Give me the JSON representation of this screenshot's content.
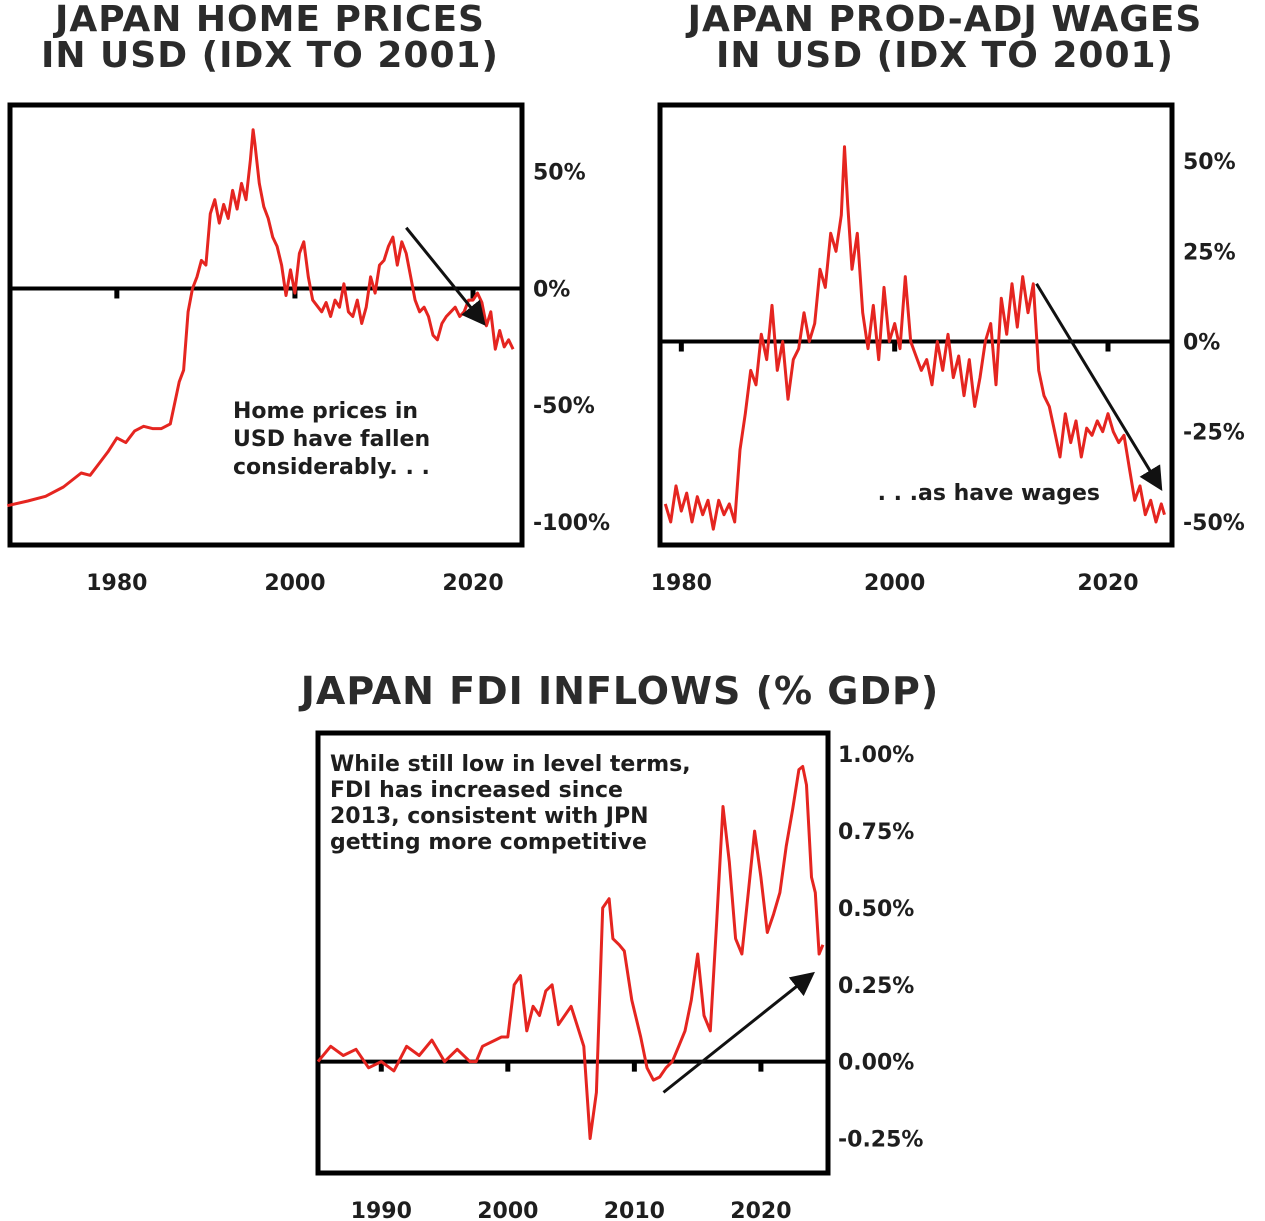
{
  "colors": {
    "line": "#e52520",
    "axis": "#000000",
    "arrow": "#111111"
  },
  "chart_data": [
    {
      "type": "line",
      "title_lines": [
        "JAPAN HOME PRICES",
        "IN USD (IDX TO 2001)"
      ],
      "ylim": [
        -100,
        70
      ],
      "y_ticks": [
        50,
        0,
        -50,
        -100
      ],
      "y_tick_labels": [
        "50%",
        "0%",
        "-50%",
        "-100%"
      ],
      "x_ticks": [
        1980,
        2000,
        2020
      ],
      "x_tick_labels": [
        "1980",
        "2000",
        "2020"
      ],
      "x_minor_ticks": [
        1980,
        2000,
        2020
      ],
      "xlim": [
        1968,
        2025.5
      ],
      "zero_line": 0,
      "annotation_lines": [
        "Home prices in",
        "USD have fallen",
        "considerably. . ."
      ],
      "arrow": {
        "from": [
          2012.5,
          26
        ],
        "to": [
          2021,
          -14
        ]
      },
      "series": [
        {
          "x": [
            1967.7,
            1970,
            1972,
            1974,
            1975,
            1976,
            1977,
            1978,
            1979,
            1980,
            1981,
            1982,
            1983,
            1984,
            1985,
            1986,
            1987,
            1987.5,
            1988,
            1988.5,
            1989,
            1989.5,
            1990,
            1990.5,
            1991,
            1991.5,
            1992,
            1992.5,
            1993,
            1993.5,
            1994,
            1994.5,
            1995,
            1995.3,
            1995.5,
            1996,
            1996.5,
            1997,
            1997.5,
            1998,
            1998.5,
            1999,
            1999.5,
            2000,
            2000.5,
            2001,
            2001.5,
            2002,
            2003,
            2003.5,
            2004,
            2004.5,
            2005,
            2005.5,
            2006,
            2006.5,
            2007,
            2007.5,
            2008,
            2008.5,
            2009,
            2009.5,
            2010,
            2010.5,
            2011,
            2011.5,
            2012,
            2012.5,
            2013,
            2013.5,
            2014,
            2014.5,
            2015,
            2015.5,
            2016,
            2016.5,
            2017,
            2017.5,
            2018,
            2018.5,
            2019,
            2019.5,
            2020,
            2020.5,
            2021,
            2021.5,
            2022,
            2022.5,
            2023,
            2023.5,
            2024,
            2024.5
          ],
          "y": [
            -93,
            -91,
            -89,
            -85,
            -82,
            -79,
            -80,
            -75,
            -70,
            -64,
            -66,
            -61,
            -59,
            -60,
            -60,
            -58,
            -40,
            -35,
            -10,
            0,
            5,
            12,
            10,
            32,
            38,
            28,
            36,
            30,
            42,
            34,
            45,
            38,
            55,
            68,
            62,
            45,
            35,
            30,
            22,
            18,
            10,
            -3,
            8,
            -2,
            15,
            20,
            5,
            -5,
            -10,
            -6,
            -12,
            -5,
            -8,
            2,
            -10,
            -12,
            -5,
            -15,
            -8,
            5,
            -2,
            10,
            12,
            18,
            22,
            10,
            20,
            15,
            5,
            -5,
            -10,
            -8,
            -12,
            -20,
            -22,
            -15,
            -12,
            -10,
            -8,
            -12,
            -10,
            -5,
            -5,
            -2,
            -6,
            -16,
            -10,
            -26,
            -18,
            -25,
            -22,
            -26
          ]
        }
      ]
    },
    {
      "type": "line",
      "title_lines": [
        "JAPAN PROD-ADJ WAGES",
        "IN USD (IDX TO 2001)"
      ],
      "ylim": [
        -55,
        60
      ],
      "y_ticks": [
        50,
        25,
        0,
        -25,
        -50
      ],
      "y_tick_labels": [
        "50%",
        "25%",
        "0%",
        "-25%",
        "-50%"
      ],
      "x_ticks": [
        1980,
        2000,
        2020
      ],
      "x_tick_labels": [
        "1980",
        "2000",
        "2020"
      ],
      "x_minor_ticks": [
        1980,
        2000,
        2020
      ],
      "xlim": [
        1978,
        2026
      ],
      "zero_line": 0,
      "annotation_lines": [
        ". . .as have wages"
      ],
      "arrow": {
        "from": [
          2013.3,
          16
        ],
        "to": [
          2024.8,
          -40
        ]
      },
      "series": [
        {
          "x": [
            1978.5,
            1979,
            1979.5,
            1980,
            1980.5,
            1981,
            1981.5,
            1982,
            1982.5,
            1983,
            1983.5,
            1984,
            1984.5,
            1985,
            1985.5,
            1986,
            1986.5,
            1987,
            1987.5,
            1988,
            1988.5,
            1989,
            1989.5,
            1990,
            1990.5,
            1991,
            1991.5,
            1992,
            1992.5,
            1993,
            1993.5,
            1994,
            1994.5,
            1995,
            1995.3,
            1995.6,
            1996,
            1996.5,
            1997,
            1997.5,
            1998,
            1998.5,
            1999,
            1999.5,
            2000,
            2000.5,
            2001,
            2001.5,
            2002,
            2002.5,
            2003,
            2003.5,
            2004,
            2004.5,
            2005,
            2005.5,
            2006,
            2006.5,
            2007,
            2007.5,
            2008,
            2008.5,
            2009,
            2009.5,
            2010,
            2010.5,
            2011,
            2011.5,
            2012,
            2012.5,
            2013,
            2013.5,
            2014,
            2014.5,
            2015,
            2015.5,
            2016,
            2016.5,
            2017,
            2017.5,
            2018,
            2018.5,
            2019,
            2019.5,
            2020,
            2020.5,
            2021,
            2021.5,
            2022,
            2022.5,
            2023,
            2023.5,
            2024,
            2024.5,
            2025,
            2025.3
          ],
          "y": [
            -45,
            -50,
            -40,
            -47,
            -42,
            -50,
            -43,
            -48,
            -44,
            -52,
            -44,
            -48,
            -45,
            -50,
            -30,
            -20,
            -8,
            -12,
            2,
            -5,
            10,
            -8,
            0,
            -16,
            -5,
            -2,
            8,
            0,
            5,
            20,
            15,
            30,
            25,
            35,
            54,
            38,
            20,
            30,
            8,
            -2,
            10,
            -5,
            15,
            0,
            5,
            -2,
            18,
            0,
            -4,
            -8,
            -5,
            -12,
            0,
            -8,
            2,
            -10,
            -4,
            -15,
            -5,
            -18,
            -10,
            0,
            5,
            -12,
            12,
            2,
            16,
            4,
            18,
            8,
            16,
            -8,
            -15,
            -18,
            -25,
            -32,
            -20,
            -28,
            -22,
            -32,
            -24,
            -26,
            -22,
            -25,
            -20,
            -25,
            -28,
            -26,
            -35,
            -44,
            -40,
            -48,
            -44,
            -50,
            -45,
            -48
          ]
        }
      ]
    },
    {
      "type": "line",
      "title": "JAPAN FDI INFLOWS (% GDP)",
      "ylim": [
        -0.32,
        1.03
      ],
      "y_ticks": [
        1.0,
        0.75,
        0.5,
        0.25,
        0.0,
        -0.25
      ],
      "y_tick_labels": [
        "1.00%",
        "0.75%",
        "0.50%",
        "0.25%",
        "0.00%",
        "-0.25%"
      ],
      "x_ticks": [
        1990,
        2000,
        2010,
        2020
      ],
      "x_tick_labels": [
        "1990",
        "2000",
        "2010",
        "2020"
      ],
      "x_minor_ticks": [
        1990,
        2000,
        2010,
        2020
      ],
      "xlim": [
        1985,
        2025.3
      ],
      "zero_line": 0,
      "annotation_lines": [
        "While still low in level terms,",
        "FDI has increased since",
        "2013, consistent with JPN",
        "getting more competitive"
      ],
      "arrow": {
        "from": [
          2012.3,
          -0.1
        ],
        "to": [
          2023.9,
          0.28
        ]
      },
      "series": [
        {
          "x": [
            1985,
            1986,
            1987,
            1988,
            1989,
            1990,
            1991,
            1992,
            1993,
            1994,
            1995,
            1996,
            1997,
            1997.5,
            1998,
            1999,
            1999.5,
            2000,
            2000.5,
            2001,
            2001.5,
            2002,
            2002.5,
            2003,
            2003.5,
            2004,
            2005,
            2006,
            2006.5,
            2007,
            2007.5,
            2008,
            2008.3,
            2008.8,
            2009.2,
            2009.8,
            2010.5,
            2011,
            2011.5,
            2012,
            2012.5,
            2013,
            2013.5,
            2014,
            2014.5,
            2015,
            2015.5,
            2016,
            2016.5,
            2017,
            2017.5,
            2018,
            2018.5,
            2019,
            2019.5,
            2020,
            2020.5,
            2021,
            2021.5,
            2022,
            2022.5,
            2023,
            2023.3,
            2023.6,
            2024,
            2024.3,
            2024.6,
            2024.9
          ],
          "y": [
            0,
            0.05,
            0.02,
            0.04,
            -0.02,
            0,
            -0.03,
            0.05,
            0.02,
            0.07,
            0,
            0.04,
            0,
            0,
            0.05,
            0.07,
            0.08,
            0.08,
            0.25,
            0.28,
            0.1,
            0.18,
            0.15,
            0.23,
            0.25,
            0.12,
            0.18,
            0.05,
            -0.25,
            -0.1,
            0.5,
            0.53,
            0.4,
            0.38,
            0.36,
            0.2,
            0.08,
            -0.02,
            -0.06,
            -0.05,
            -0.02,
            0,
            0.05,
            0.1,
            0.2,
            0.35,
            0.15,
            0.1,
            0.45,
            0.83,
            0.65,
            0.4,
            0.35,
            0.55,
            0.75,
            0.6,
            0.42,
            0.48,
            0.55,
            0.7,
            0.82,
            0.95,
            0.96,
            0.9,
            0.6,
            0.55,
            0.35,
            0.38
          ]
        }
      ]
    }
  ]
}
